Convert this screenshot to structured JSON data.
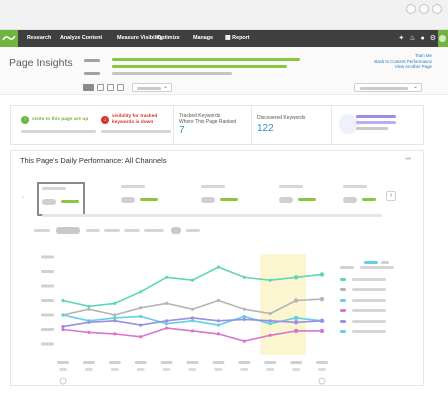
{
  "nav": {
    "items": [
      "Research",
      "Analyze Content",
      "Measure Visibility",
      "Optimize",
      "Manage",
      "Report"
    ],
    "report_icon": "grid-icon"
  },
  "header": {
    "title": "Page Insights",
    "links": [
      "Train Me",
      "Back to Content Performance",
      "View Another Page"
    ]
  },
  "summary": {
    "visits_up": "visits to this page are up",
    "visibility_down": "visibility for tracked keywords is down",
    "tracked_label_1": "Tracked Keywords",
    "tracked_label_2": "Where This Page Ranked",
    "tracked_value": "7",
    "discovered_label": "Discovered Keywords",
    "discovered_value": "122"
  },
  "performance": {
    "title": "This Page's Daily Performance: All Channels"
  },
  "colors": {
    "brand_green": "#6fb43f",
    "nav_dark": "#3f3f3f",
    "link_blue": "#2b7ab8",
    "value_blue": "#2b93c9",
    "alert_red": "#d9342b",
    "highlight": "#fbf6cf",
    "series_teal": "#5fd6b8",
    "series_gray": "#b5b5b5",
    "series_cyan": "#62cfe6",
    "series_magenta": "#d975cc",
    "series_purple": "#9a8fe0"
  },
  "chart_data": {
    "type": "line",
    "x": [
      1,
      2,
      3,
      4,
      5,
      6,
      7,
      8,
      9,
      10,
      11
    ],
    "ylim": [
      0,
      6
    ],
    "highlight_range": [
      9,
      10
    ],
    "series": [
      {
        "color": "#5fd6b8",
        "values": [
          3.0,
          2.6,
          2.8,
          3.6,
          4.6,
          4.4,
          5.3,
          4.6,
          4.4,
          4.6,
          4.8
        ]
      },
      {
        "color": "#b5b5b5",
        "values": [
          2.0,
          2.4,
          2.0,
          2.5,
          2.8,
          2.4,
          3.0,
          2.4,
          2.1,
          3.0,
          3.1
        ]
      },
      {
        "color": "#62cfe6",
        "values": [
          2.0,
          1.6,
          1.8,
          1.9,
          1.4,
          1.6,
          1.3,
          1.9,
          1.4,
          1.8,
          1.6
        ]
      },
      {
        "color": "#d975cc",
        "values": [
          1.0,
          0.8,
          0.7,
          0.5,
          1.1,
          0.9,
          0.7,
          0.2,
          0.6,
          0.9,
          0.9
        ]
      },
      {
        "color": "#9a8fe0",
        "values": [
          1.2,
          1.5,
          1.6,
          1.3,
          1.6,
          1.8,
          1.6,
          1.7,
          1.6,
          1.5,
          1.6
        ]
      }
    ]
  }
}
